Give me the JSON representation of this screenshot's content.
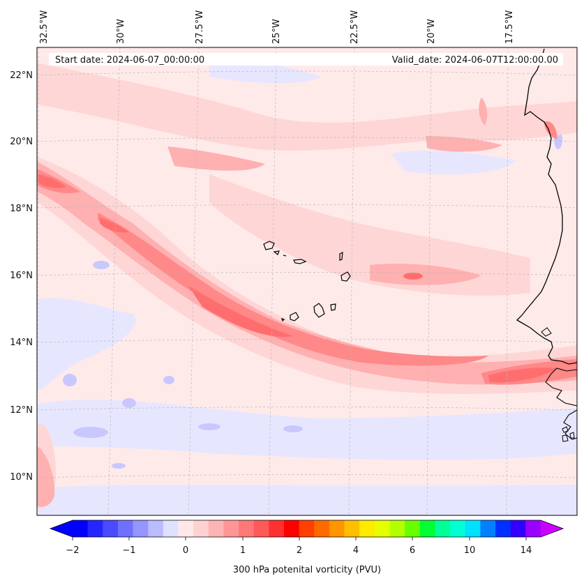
{
  "map": {
    "start_label": "Start date: 2024-06-07_00:00:00",
    "valid_label": "Valid_date: 2024-06-07T12:00:00.00",
    "lon_labels": [
      "32.5°W",
      "30°W",
      "27.5°W",
      "25°W",
      "22.5°W",
      "20°W",
      "17.5°W"
    ],
    "lat_labels": [
      "22°N",
      "20°N",
      "18°N",
      "16°N",
      "14°N",
      "12°N",
      "10°N"
    ],
    "islands_name": "Cape Verde islands",
    "coastline_name": "West African coastline"
  },
  "colorbar": {
    "title": "300 hPa potenital vorticity (PVU)",
    "tick_labels": [
      "−2",
      "−1",
      "0",
      "1",
      "2",
      "4",
      "6",
      "10",
      "14"
    ],
    "colors": [
      "#0000ff",
      "#2525ff",
      "#4a4aff",
      "#7070ff",
      "#9595ff",
      "#bbbbff",
      "#e0e0ff",
      "#ffe8e8",
      "#ffd2d2",
      "#ffb4b4",
      "#ff9696",
      "#ff7878",
      "#ff5a5a",
      "#ff3030",
      "#ff0000",
      "#ff4000",
      "#ff6a00",
      "#ff9500",
      "#ffbf00",
      "#ffea00",
      "#e6ff00",
      "#b3ff00",
      "#66ff00",
      "#00ff33",
      "#00ff99",
      "#00ffd5",
      "#00e0ff",
      "#0080ff",
      "#0030ff",
      "#3300ff",
      "#9900ff"
    ],
    "extend_min_color": "#0000ff",
    "extend_max_color": "#cc00ff"
  },
  "colors": {
    "field_background": "#ffeaea",
    "light_pink": "#ffd6d6",
    "pink": "#ffb0b0",
    "dark_pink": "#ff8888",
    "red": "#ff6e6e",
    "light_blue": "#e6e6ff",
    "blue": "#c8c8ff",
    "coast": "#000000"
  }
}
